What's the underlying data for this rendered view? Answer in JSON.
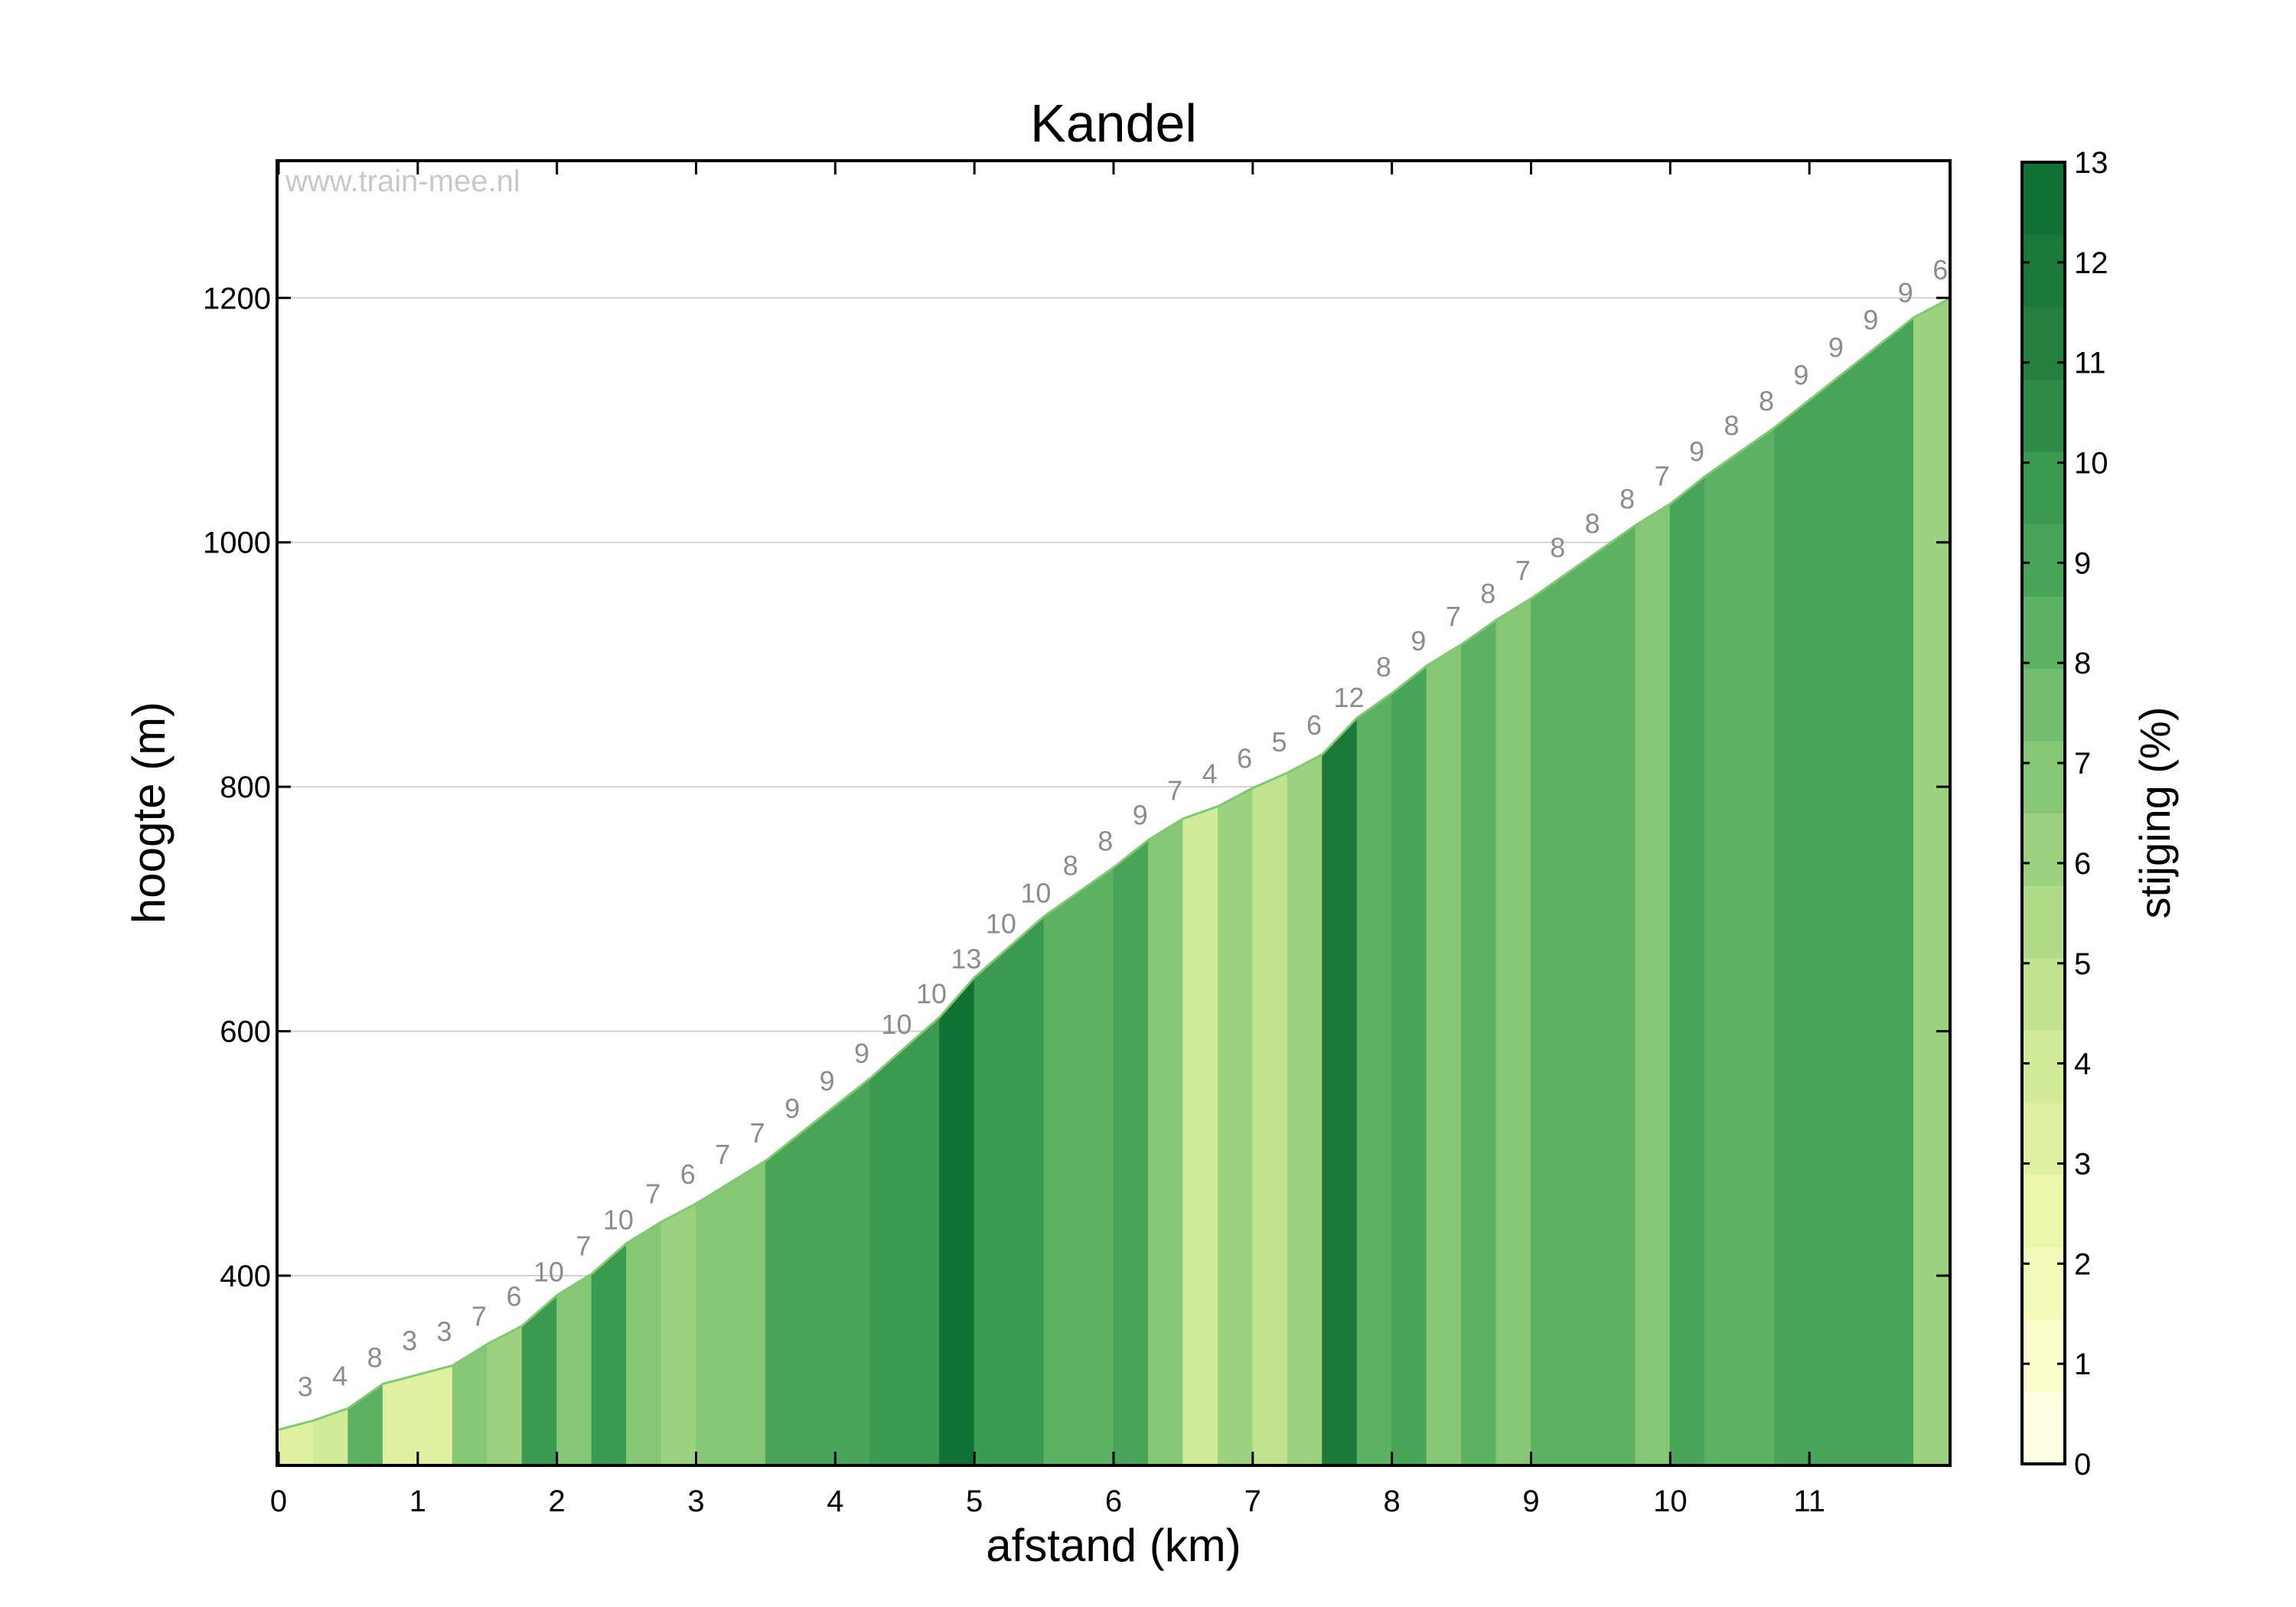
{
  "chart_data": {
    "type": "area",
    "title": "Kandel",
    "xlabel": "afstand (km)",
    "ylabel": "hoogte (m)",
    "watermark": "www.train-mee.nl",
    "xlim": [
      0,
      12
    ],
    "ylim": [
      246,
      1311
    ],
    "xticks": [
      "0",
      "1",
      "2",
      "3",
      "4",
      "5",
      "6",
      "7",
      "8",
      "9",
      "10",
      "11"
    ],
    "yticks": [
      "400",
      "600",
      "800",
      "1000",
      "1200"
    ],
    "grid": true,
    "segment_km": 0.25,
    "start_altitude_m": 274,
    "gradients_pct": [
      3,
      4,
      8,
      3,
      3,
      7,
      6,
      10,
      7,
      10,
      7,
      6,
      7,
      7,
      9,
      9,
      9,
      10,
      10,
      13,
      10,
      10,
      8,
      8,
      9,
      7,
      4,
      6,
      5,
      6,
      12,
      8,
      9,
      7,
      8,
      7,
      8,
      8,
      8,
      7,
      9,
      8,
      8,
      9,
      9,
      9,
      9,
      6
    ],
    "colorbar": {
      "label": "stijging (%)",
      "min": 0,
      "max": 13,
      "ticks": [
        "0",
        "1",
        "2",
        "3",
        "4",
        "5",
        "6",
        "7",
        "8",
        "9",
        "10",
        "11",
        "12",
        "13"
      ],
      "colors": [
        "#fffde2",
        "#fbfdcb",
        "#f4fbb9",
        "#ecf7ab",
        "#dff1a1",
        "#d2eb98",
        "#c1e38f",
        "#b0db86",
        "#9cd17d",
        "#86c775",
        "#72bd6f",
        "#5cb163",
        "#48a558",
        "#3a9a50",
        "#2d8b46",
        "#23803f",
        "#1a7839",
        "#0f7234"
      ]
    }
  }
}
